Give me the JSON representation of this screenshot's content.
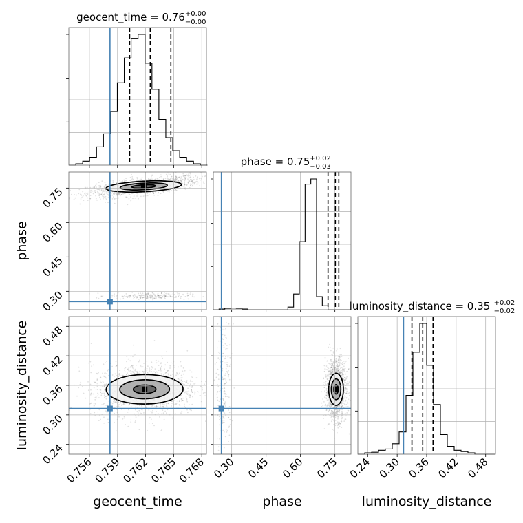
{
  "chart_data": {
    "type": "corner",
    "truth_color": "#4682b4",
    "parameters": [
      {
        "name": "geocent_time",
        "axis_label": "geocent_time",
        "title_main": "geocent_time = 0.76",
        "title_plus": "+0.00",
        "title_minus": "−0.00",
        "range": [
          0.7538,
          0.7685
        ],
        "ticks": [
          0.756,
          0.759,
          0.762,
          0.765,
          0.768
        ],
        "tick_labels": [
          "0.756",
          "0.759",
          "0.762",
          "0.765",
          "0.768"
        ],
        "truth": 0.7582,
        "quantiles": [
          0.7603,
          0.7625,
          0.7647
        ],
        "hist": {
          "edges_start": 0.7538,
          "bin_width": 0.00074,
          "counts": [
            0,
            1,
            3,
            6,
            14,
            24,
            41,
            63,
            82,
            97,
            100,
            78,
            58,
            35,
            21,
            11,
            6,
            3,
            1,
            0
          ]
        }
      },
      {
        "name": "phase",
        "axis_label": "phase",
        "title_main": "phase = 0.75",
        "title_plus": "+0.02",
        "title_minus": "−0.03",
        "range": [
          0.22,
          0.82
        ],
        "ticks": [
          0.3,
          0.45,
          0.6,
          0.75
        ],
        "tick_labels": [
          "0.30",
          "0.45",
          "0.60",
          "0.75"
        ],
        "truth": 0.255,
        "quantiles": [
          0.72,
          0.752,
          0.767
        ],
        "hist": {
          "edges_start": 0.22,
          "bin_width": 0.025,
          "counts": [
            0,
            0.5,
            1,
            1.2,
            1,
            0.5,
            0,
            0,
            0,
            0,
            0,
            0,
            0,
            2,
            12,
            52,
            96,
            100,
            10,
            3,
            0,
            0,
            0,
            0
          ]
        }
      },
      {
        "name": "luminosity_distance",
        "axis_label": "luminosity_distance",
        "title_main": "luminosity_distance = 0.35",
        "title_plus": "+0.02",
        "title_minus": "−0.02",
        "range": [
          0.22,
          0.5
        ],
        "ticks": [
          0.24,
          0.3,
          0.36,
          0.42,
          0.48
        ],
        "tick_labels": [
          "0.24",
          "0.30",
          "0.36",
          "0.42",
          "0.48"
        ],
        "truth": 0.313,
        "quantiles": [
          0.33,
          0.352,
          0.373
        ],
        "hist": {
          "edges_start": 0.22,
          "bin_width": 0.014,
          "counts": [
            0,
            1,
            1.5,
            3,
            4,
            8,
            17,
            45,
            78,
            100,
            68,
            38,
            15,
            6,
            3,
            2,
            1,
            0,
            0,
            0
          ]
        }
      }
    ],
    "scatter_2d": [
      {
        "x_param": "geocent_time",
        "y_param": "phase",
        "core": {
          "cx": 0.7618,
          "cy": 0.757,
          "sx": 0.0024,
          "sy": 0.018,
          "rho": 0.62
        },
        "aux": {
          "cx": 0.7625,
          "cy": 0.28,
          "sx": 0.0018,
          "sy": 0.006
        },
        "contour_levels": [
          0.5,
          1.0,
          1.6
        ]
      },
      {
        "x_param": "geocent_time",
        "y_param": "luminosity_distance",
        "core": {
          "cx": 0.7619,
          "cy": 0.352,
          "sx": 0.0023,
          "sy": 0.022,
          "rho": 0.08
        },
        "contour_levels": [
          0.5,
          1.1,
          1.7
        ]
      },
      {
        "x_param": "phase",
        "y_param": "luminosity_distance",
        "core": {
          "cx": 0.755,
          "cy": 0.352,
          "sx": 0.018,
          "sy": 0.024,
          "rho": 0.0
        },
        "aux": {
          "cx": 0.265,
          "cy": 0.36,
          "sx": 0.014,
          "sy": 0.06
        },
        "contour_levels": [
          0.5,
          1.1,
          1.7
        ]
      }
    ],
    "grid": true
  }
}
